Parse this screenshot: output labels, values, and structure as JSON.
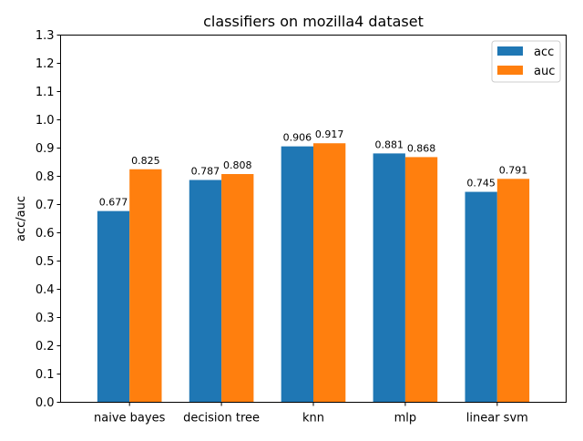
{
  "chart_data": {
    "type": "bar",
    "title": "classifiers on mozilla4 dataset",
    "xlabel": "",
    "ylabel": "acc/auc",
    "categories": [
      "naive bayes",
      "decision tree",
      "knn",
      "mlp",
      "linear svm"
    ],
    "series": [
      {
        "name": "acc",
        "color": "#1f77b4",
        "values": [
          0.677,
          0.787,
          0.906,
          0.881,
          0.745
        ],
        "labels": [
          "0.677",
          "0.787",
          "0.906",
          "0.881",
          "0.745"
        ]
      },
      {
        "name": "auc",
        "color": "#ff7f0e",
        "values": [
          0.825,
          0.808,
          0.917,
          0.868,
          0.791
        ],
        "labels": [
          "0.825",
          "0.808",
          "0.917",
          "0.868",
          "0.791"
        ]
      }
    ],
    "ylim": [
      0,
      1.3
    ],
    "yticks": [
      "0.0",
      "0.1",
      "0.2",
      "0.3",
      "0.4",
      "0.5",
      "0.6",
      "0.7",
      "0.8",
      "0.9",
      "1.0",
      "1.1",
      "1.2",
      "1.3"
    ],
    "grid": false,
    "legend_position": "top-right"
  }
}
